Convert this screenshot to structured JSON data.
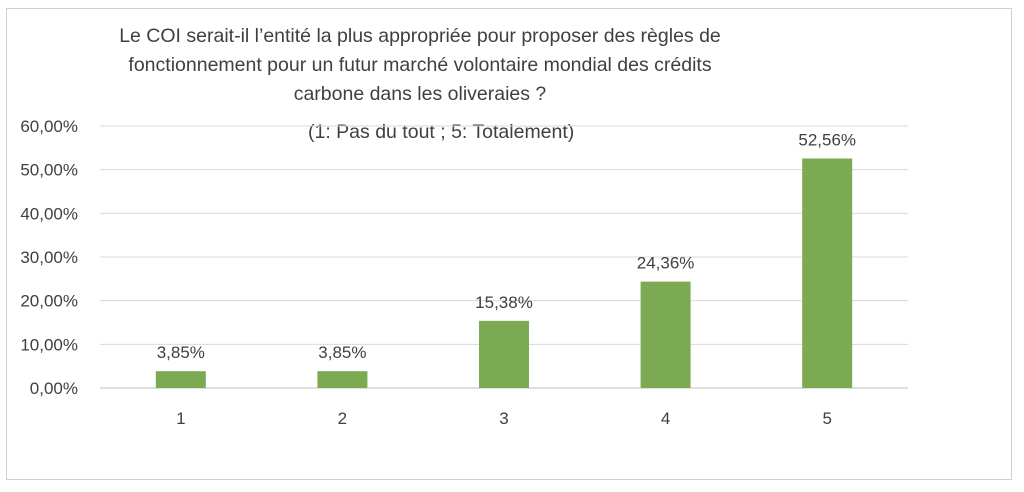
{
  "chart_data": {
    "type": "bar",
    "title_lines": [
      "Le COI serait-il l’entité la plus appropriée pour proposer des règles de",
      "fonctionnement pour un futur marché volontaire mondial des crédits",
      "carbone dans les oliveraies ?"
    ],
    "subtitle": "(1: Pas du tout ; 5: Totalement)",
    "categories": [
      "1",
      "2",
      "3",
      "4",
      "5"
    ],
    "values": [
      3.85,
      3.85,
      15.38,
      24.36,
      52.56
    ],
    "value_labels": [
      "3,85%",
      "3,85%",
      "15,38%",
      "24,36%",
      "52,56%"
    ],
    "ylim": [
      0,
      60
    ],
    "yticks": [
      0,
      10,
      20,
      30,
      40,
      50,
      60
    ],
    "ytick_labels": [
      "0,00%",
      "10,00%",
      "20,00%",
      "30,00%",
      "40,00%",
      "50,00%",
      "60,00%"
    ],
    "bar_color": "#7caa53",
    "gridline_color": "#d9d9d9",
    "grid": true,
    "legend": "none"
  }
}
